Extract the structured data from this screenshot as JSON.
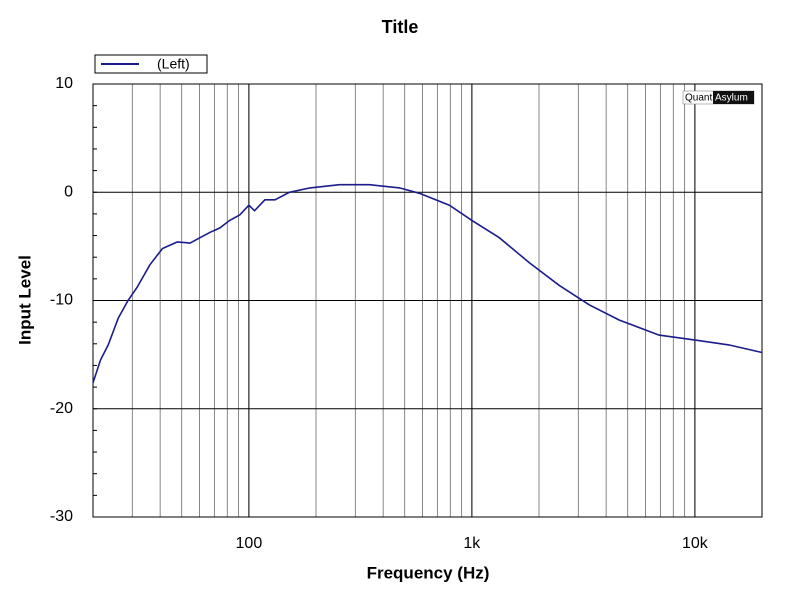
{
  "chart_data": {
    "type": "line",
    "title": "Title",
    "x_label": "Frequency (Hz)",
    "y_label": "Input Level",
    "watermark": [
      "Quant",
      "Asylum"
    ],
    "xscale": "log",
    "grid": true,
    "legend": "top-left",
    "xlim": [
      20,
      20000
    ],
    "ylim": [
      -30,
      10
    ],
    "xticks": [
      100,
      {
        "value": 1000,
        "label": "1k"
      },
      {
        "value": 10000,
        "label": "10k"
      }
    ],
    "yticks": [
      -30,
      -20,
      -10,
      0,
      10
    ],
    "series": [
      {
        "name": "(Left)",
        "color": "#1c1c8c",
        "x": [
          20,
          21.6,
          23.4,
          26,
          28.7,
          31.5,
          36,
          41,
          47.7,
          54.5,
          60.4,
          67,
          74,
          82,
          91,
          100,
          106,
          118,
          131,
          152,
          188,
          255,
          348,
          474,
          582,
          793,
          1000,
          1328,
          1808,
          2462,
          3357,
          4571,
          6902,
          10400,
          14190,
          20000
        ],
        "values": [
          -17.6,
          -15.5,
          -14.1,
          -11.6,
          -10,
          -8.8,
          -6.7,
          -5.2,
          -4.6,
          -4.7,
          -4.2,
          -3.7,
          -3.3,
          -2.6,
          -2.1,
          -1.2,
          -1.7,
          -0.7,
          -0.7,
          0,
          0.4,
          0.7,
          0.7,
          0.4,
          -0.1,
          -1.2,
          -2.6,
          -4.2,
          -6.5,
          -8.6,
          -10.4,
          -11.8,
          -13.2,
          -13.7,
          -14.1,
          -14.8
        ]
      }
    ]
  }
}
